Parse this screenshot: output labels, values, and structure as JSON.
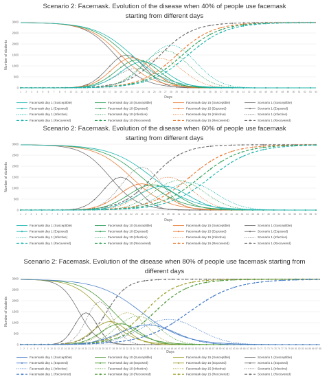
{
  "colors": {
    "facemask_day1_p40": "#1fb5b0",
    "facemask_day10_p40": "#2e9e5a",
    "facemask_day15": "#e87f3a",
    "scenario1": "#707070",
    "facemask_day1_p80": "#4a7fc8",
    "facemask_day10_p80": "#4f9a3a",
    "facemask_day15_p80": "#a0a030"
  },
  "chart_data": [
    {
      "type": "line",
      "title": "Scenario 2: Facemask. Evolution of the disease when 40% of people use facemask starting from different days",
      "title_lines": [
        "Scenario 2: Facemask. Evolution of the disease when 40% of people use facemask",
        "starting from different days"
      ],
      "xlabel": "Days",
      "ylabel": "Number of students",
      "xlim": [
        1,
        54
      ],
      "ylim": [
        0,
        3000
      ],
      "yticks": [
        0,
        500,
        1000,
        1500,
        2000,
        2500,
        3000
      ],
      "legend_position": "bottom",
      "legend": [
        [
          "Facemask day 1 (Susceptible)",
          "Facemask day 10 (Susceptible)",
          "Facemask day 15 (Susceptible)",
          "Scenario 1 (Susceptible)"
        ],
        [
          "Facemask day 1 (Exposed)",
          "Facemask day 10 (Exposed)",
          "Facemask day 15 (Exposed)",
          "Scenario 1 (Exposed)"
        ],
        [
          "Facemask day 1 (Infective)",
          "Facemask day 10 (Infective)",
          "Facemask day 15 (Infective)",
          "Scenario 1 (Infective)"
        ],
        [
          "Facemask day 1 (Recovered)",
          "Facemask day 10 (Recovered)",
          "Facemask day 15 (Recovered)",
          "Scenario 1 (Recovered)"
        ]
      ],
      "series_colors": [
        "#1fb5b0",
        "#2e9e5a",
        "#e87f3a",
        "#707070"
      ],
      "series": [
        {
          "name": "Scenario 1",
          "color_index": 3,
          "sus_mid": 18,
          "sus_k": 0.38,
          "exp_peak": 1500,
          "exp_t": 20,
          "exp_w": 3.3,
          "inf_peak": 900,
          "inf_t": 22,
          "inf_w": 3.8,
          "rec_mid": 26,
          "rec_k": 0.34
        },
        {
          "name": "Facemask day 15",
          "color_index": 2,
          "sus_mid": 19,
          "sus_k": 0.34,
          "exp_peak": 1380,
          "exp_t": 21,
          "exp_w": 3.6,
          "inf_peak": 1350,
          "inf_t": 26,
          "inf_w": 4.0,
          "rec_mid": 29,
          "rec_k": 0.31
        },
        {
          "name": "Facemask day 10",
          "color_index": 1,
          "sus_mid": 20,
          "sus_k": 0.32,
          "exp_peak": 1280,
          "exp_t": 22,
          "exp_w": 3.8,
          "inf_peak": 1700,
          "inf_t": 27,
          "inf_w": 4.2,
          "rec_mid": 30,
          "rec_k": 0.3
        },
        {
          "name": "Facemask day 1",
          "color_index": 0,
          "sus_mid": 21,
          "sus_k": 0.3,
          "exp_peak": 1200,
          "exp_t": 23,
          "exp_w": 4.0,
          "inf_peak": 1950,
          "inf_t": 28,
          "inf_w": 4.4,
          "rec_mid": 31,
          "rec_k": 0.29
        }
      ]
    },
    {
      "type": "line",
      "title": "Scenario 2: Facemask. Evolution of the disease when 60% of people use facemask starting from different days",
      "title_lines": [
        "Scenario 2: Facemask. Evolution of the disease when 60% of people use facemask",
        "starting from different days"
      ],
      "xlabel": "Days",
      "ylabel": "Number of students",
      "xlim": [
        1,
        57
      ],
      "ylim": [
        0,
        3000
      ],
      "yticks": [
        0,
        500,
        1000,
        1500,
        2000,
        2500,
        3000
      ],
      "legend_position": "bottom",
      "legend": [
        [
          "Facemask day 1 (Susceptible)",
          "Facemask day 10 (Susceptible)",
          "Facemask day 15 (Susceptible)",
          "Scenario 1 (Susceptible)"
        ],
        [
          "Facemask day 1 (Exposed)",
          "Facemask day 10 (Exposed)",
          "Facemask day 15 (Exposed)",
          "Scenario 1 (Exposed)"
        ],
        [
          "Facemask day 1 (Infective)",
          "Facemask day 10 (Infective)",
          "Facemask day 15 (Infective)",
          "Scenario 1 (Infective)"
        ],
        [
          "Facemask day 1 (Recovered)",
          "Facemask day 10 (Recovered)",
          "Facemask day 15 (Recovered)",
          "Scenario 1 (Recovered)"
        ]
      ],
      "series_colors": [
        "#1fb5b0",
        "#2e9e5a",
        "#e87f3a",
        "#707070"
      ],
      "series": [
        {
          "name": "Scenario 1",
          "color_index": 3,
          "sus_mid": 18,
          "sus_k": 0.38,
          "exp_peak": 1500,
          "exp_t": 20,
          "exp_w": 3.3,
          "inf_peak": 1950,
          "inf_t": 24,
          "inf_w": 3.8,
          "rec_mid": 26,
          "rec_k": 0.34
        },
        {
          "name": "Facemask day 15",
          "color_index": 2,
          "sus_mid": 22,
          "sus_k": 0.3,
          "exp_peak": 1200,
          "exp_t": 24,
          "exp_w": 4.2,
          "inf_peak": 1500,
          "inf_t": 29,
          "inf_w": 4.5,
          "rec_mid": 33,
          "rec_k": 0.27
        },
        {
          "name": "Facemask day 10",
          "color_index": 1,
          "sus_mid": 24,
          "sus_k": 0.27,
          "exp_peak": 1150,
          "exp_t": 26,
          "exp_w": 4.5,
          "inf_peak": 1350,
          "inf_t": 31,
          "inf_w": 4.8,
          "rec_mid": 35,
          "rec_k": 0.26
        },
        {
          "name": "Facemask day 1",
          "color_index": 0,
          "sus_mid": 26,
          "sus_k": 0.25,
          "exp_peak": 1100,
          "exp_t": 28,
          "exp_w": 4.8,
          "inf_peak": 1250,
          "inf_t": 33,
          "inf_w": 5.0,
          "rec_mid": 37,
          "rec_k": 0.25
        }
      ]
    },
    {
      "type": "line",
      "title": "Scenario 2: Facemask. Evolution of the disease when 80% of people use facemask starting from different days",
      "title_lines": [
        "Scenario 2: Facemask. Evolution of the disease when 80% of people use facemask starting from",
        "different days"
      ],
      "xlabel": "Days",
      "ylabel": "Number of students",
      "xlim": [
        1,
        88
      ],
      "ylim": [
        0,
        3000
      ],
      "yticks": [
        0,
        500,
        1000,
        1500,
        2000,
        2500,
        3000
      ],
      "legend_position": "bottom",
      "legend": [
        [
          "Facemask day 1 (Susceptible)",
          "Facemask day 10 (Susceptible)",
          "Facemask day 15 (Susceptible)",
          "Scenario 1 (Susceptible)"
        ],
        [
          "Facemask day 1 (Exposed)",
          "Facemask day 10 (Exposed)",
          "Facemask day 15 (Exposed)",
          "Scenario 1 (Exposed)"
        ],
        [
          "Facemask day 1 (Infective)",
          "Facemask day 10 (Infective)",
          "Facemask day 15 (Infective)",
          "Scenario 1 (Infective)"
        ],
        [
          "Facemask day 1 (Recovered)",
          "Facemask day 10 (Recovered)",
          "Facemask day 15 (Recovered)",
          "Scenario 1 (Recovered)"
        ]
      ],
      "series_colors": [
        "#4a7fc8",
        "#4f9a3a",
        "#a0a030",
        "#707070"
      ],
      "series": [
        {
          "name": "Scenario 1",
          "color_index": 3,
          "sus_mid": 18,
          "sus_k": 0.38,
          "exp_peak": 1450,
          "exp_t": 20,
          "exp_w": 3.3,
          "inf_peak": 1950,
          "inf_t": 24,
          "inf_w": 3.8,
          "rec_mid": 26,
          "rec_k": 0.34
        },
        {
          "name": "Facemask day 15",
          "color_index": 2,
          "sus_mid": 25,
          "sus_k": 0.24,
          "exp_peak": 1050,
          "exp_t": 27,
          "exp_w": 5.0,
          "inf_peak": 1450,
          "inf_t": 32,
          "inf_w": 5.4,
          "rec_mid": 37,
          "rec_k": 0.22
        },
        {
          "name": "Facemask day 10",
          "color_index": 1,
          "sus_mid": 28,
          "sus_k": 0.22,
          "exp_peak": 950,
          "exp_t": 30,
          "exp_w": 5.5,
          "inf_peak": 1300,
          "inf_t": 35,
          "inf_w": 6.0,
          "rec_mid": 40,
          "rec_k": 0.2
        },
        {
          "name": "Facemask day 1",
          "color_index": 0,
          "sus_mid": 36,
          "sus_k": 0.16,
          "exp_peak": 900,
          "exp_t": 38,
          "exp_w": 8.0,
          "inf_peak": 1150,
          "inf_t": 44,
          "inf_w": 8.5,
          "rec_mid": 50,
          "rec_k": 0.15
        }
      ]
    }
  ]
}
